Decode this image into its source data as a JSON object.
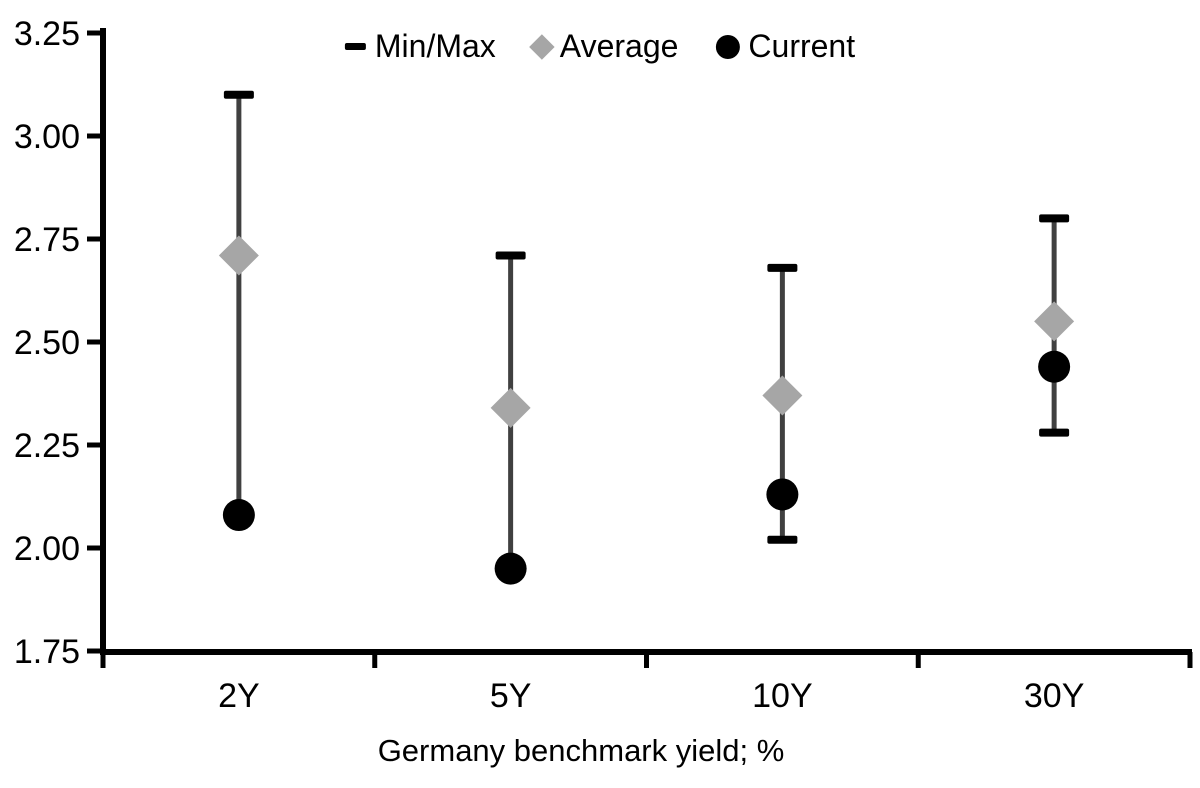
{
  "chart_data": {
    "type": "range",
    "title": "",
    "xlabel": "Germany benchmark yield; %",
    "ylabel": "",
    "categories": [
      "2Y",
      "5Y",
      "10Y",
      "30Y"
    ],
    "series": [
      {
        "name": "Min/Max",
        "marker": "dash",
        "color": "#000000",
        "min": [
          2.08,
          1.95,
          2.02,
          2.28
        ],
        "max": [
          3.1,
          2.71,
          2.68,
          2.8
        ]
      },
      {
        "name": "Average",
        "marker": "diamond",
        "color": "#a6a6a6",
        "values": [
          2.71,
          2.34,
          2.37,
          2.55
        ]
      },
      {
        "name": "Current",
        "marker": "circle",
        "color": "#000000",
        "values": [
          2.08,
          1.95,
          2.13,
          2.44
        ]
      }
    ],
    "ylim": [
      1.75,
      3.25
    ],
    "ytick_step": 0.25,
    "ytick_labels": [
      "1.75",
      "2.00",
      "2.25",
      "2.50",
      "2.75",
      "3.00",
      "3.25"
    ],
    "legend_position": "top",
    "grid": false
  },
  "colors": {
    "background": "#ffffff",
    "axis": "#000000",
    "whisker": "#404040",
    "minmax_cap": "#000000",
    "average_marker": "#a6a6a6",
    "current_marker": "#000000",
    "text": "#000000"
  }
}
